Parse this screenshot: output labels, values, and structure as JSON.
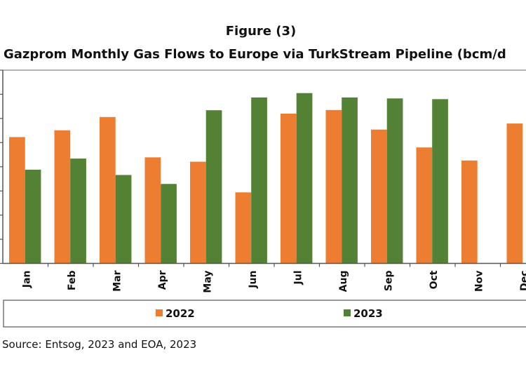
{
  "chart_data": {
    "type": "bar",
    "title": "Figure (3)",
    "subtitle": "Gazprom Monthly Gas Flows to Europe via TurkStream Pipeline   (bcm/d",
    "categories": [
      "Jan",
      "Feb",
      "Mar",
      "Apr",
      "May",
      "Jun",
      "Jul",
      "Aug",
      "Sep",
      "Oct",
      "Nov",
      "Dec"
    ],
    "series": [
      {
        "name": "2022",
        "color": "#ED7D31",
        "values": [
          5.23,
          5.51,
          6.06,
          4.39,
          4.21,
          2.94,
          6.2,
          6.35,
          5.54,
          4.8,
          4.26,
          5.79
        ]
      },
      {
        "name": "2023",
        "color": "#548235",
        "values": [
          3.88,
          4.34,
          3.66,
          3.29,
          6.34,
          6.87,
          7.05,
          6.87,
          6.83,
          6.8,
          null,
          null
        ]
      }
    ],
    "ylim": [
      0,
      8
    ],
    "y_tick_labels_visible": false,
    "grid": true,
    "legend": "bottom",
    "source": "Source: Entsog, 2023  and EOA, 2023"
  }
}
